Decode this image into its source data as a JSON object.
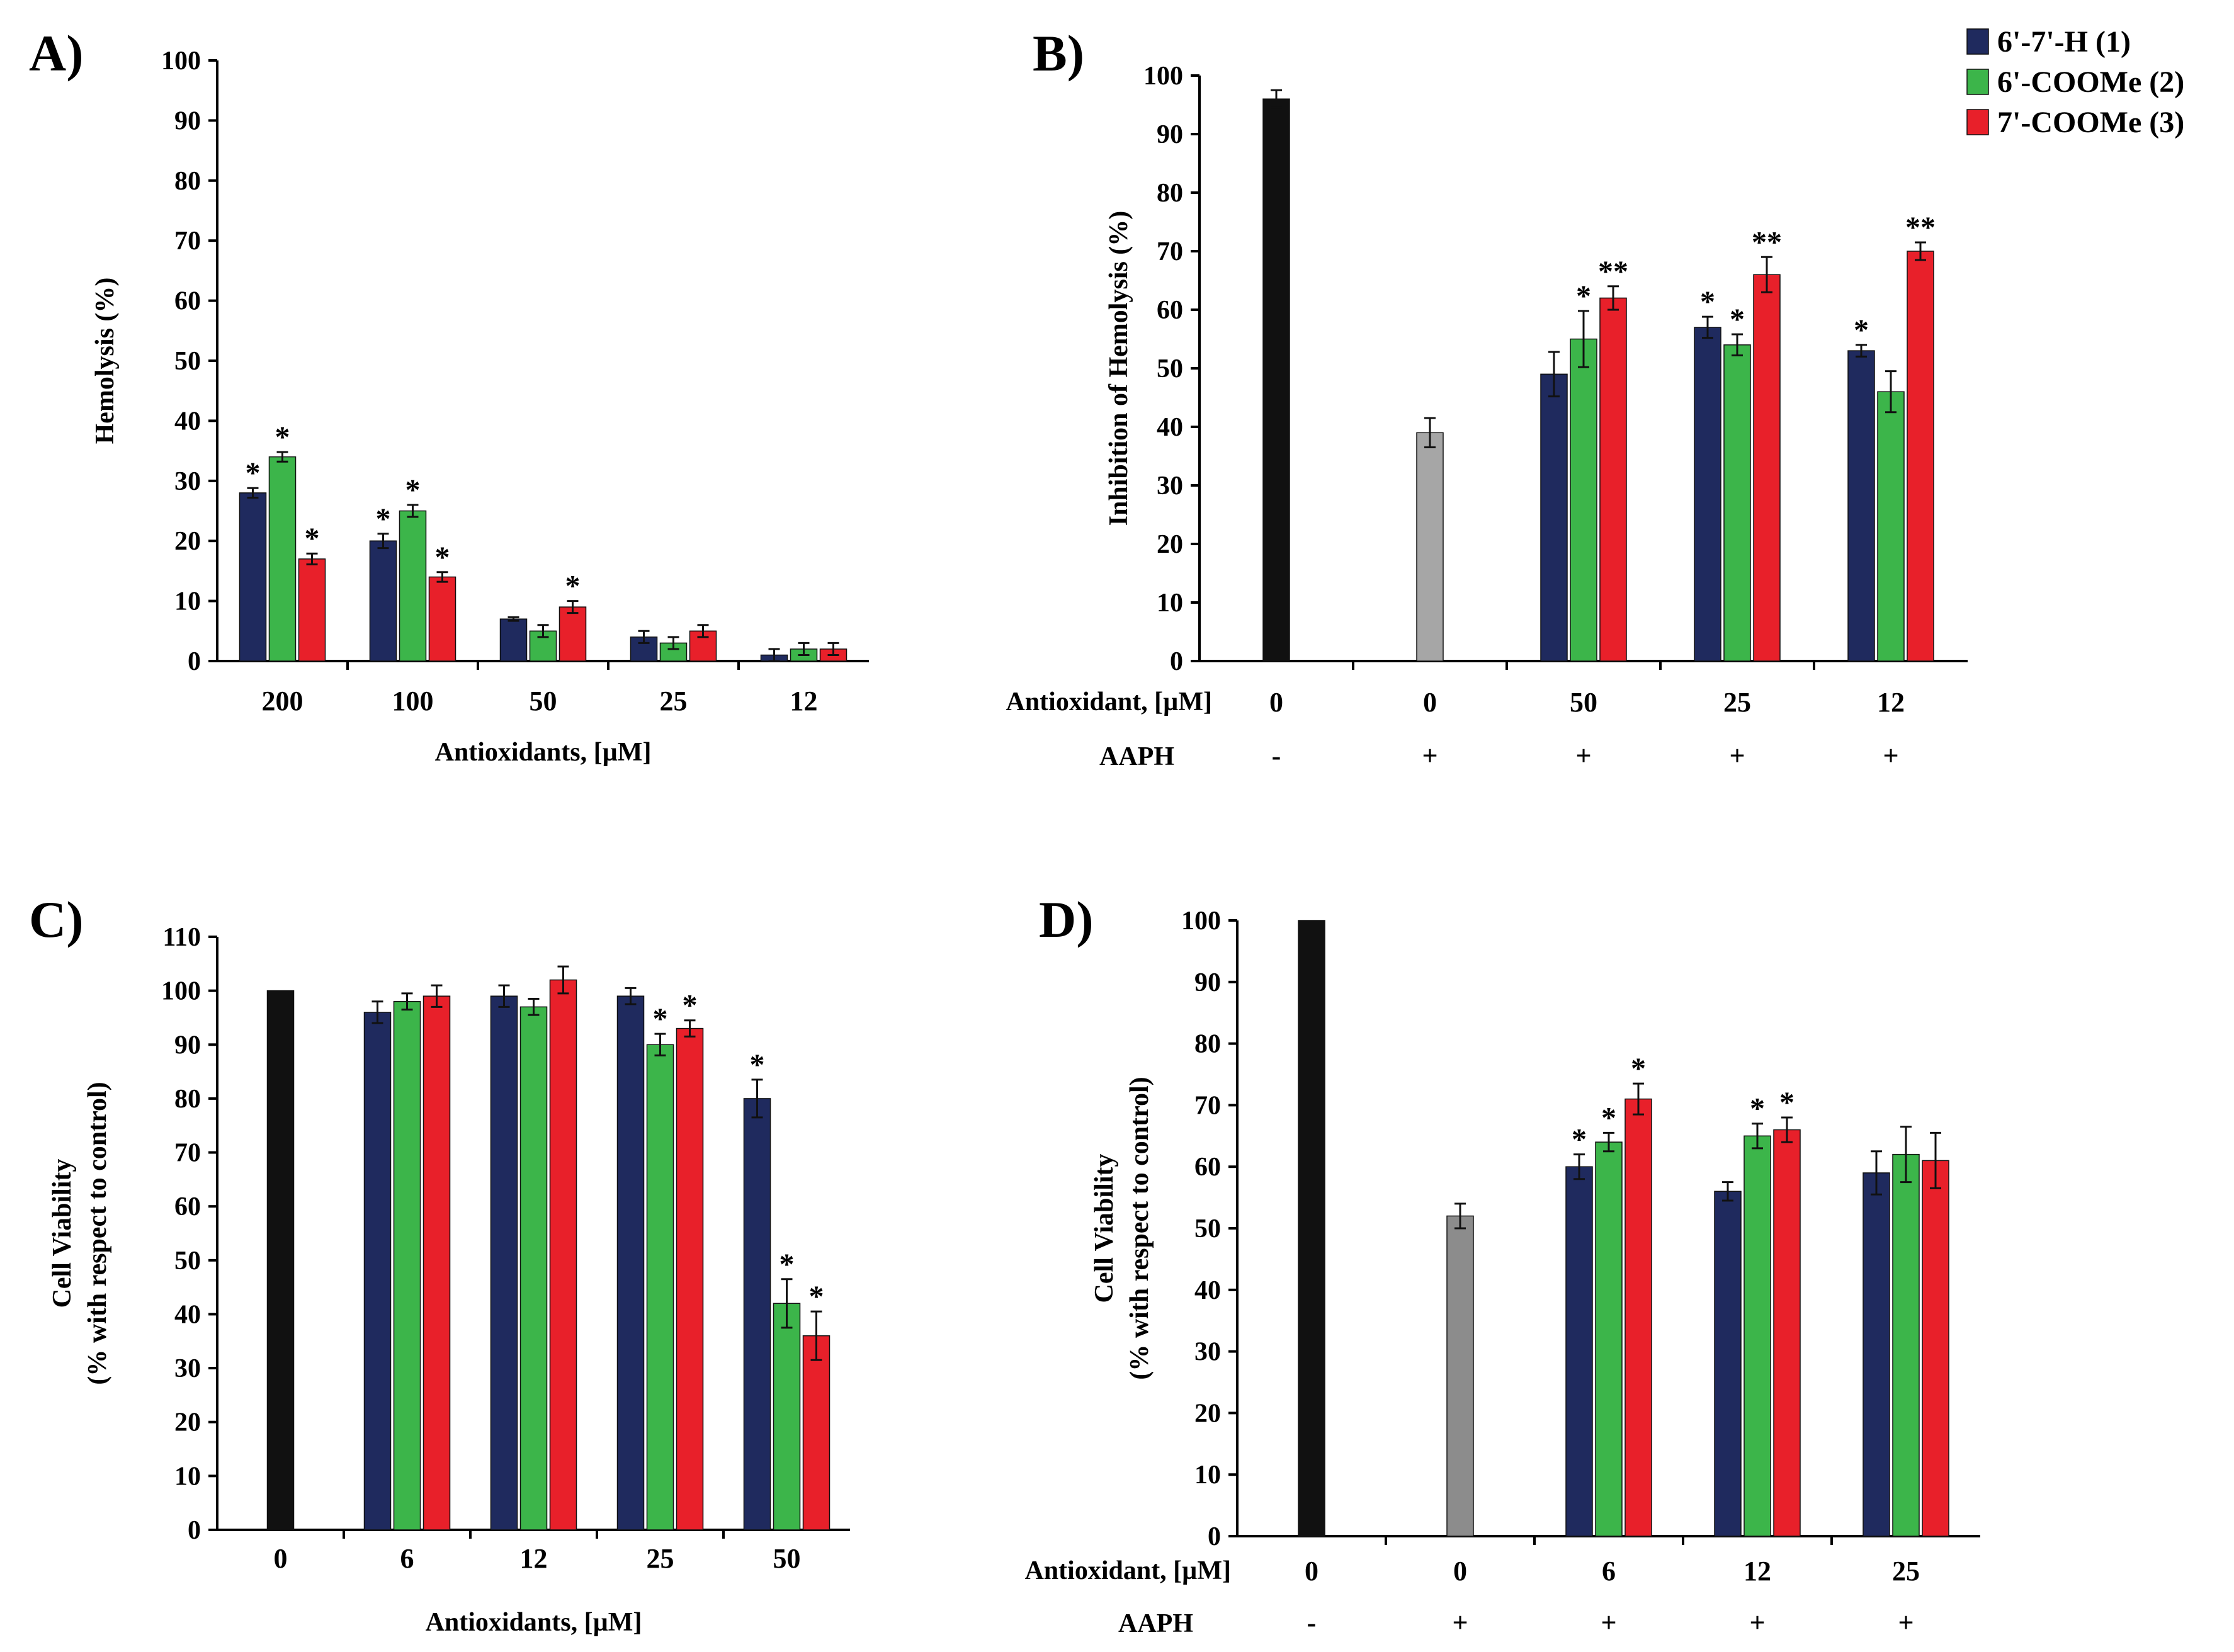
{
  "legend": [
    {
      "label": "6'-7'-H (1)",
      "color": "#1f2a5e"
    },
    {
      "label": "6'-COOMe (2)",
      "color": "#3cb54a"
    },
    {
      "label": "7'-COOMe (3)",
      "color": "#e8202a"
    }
  ],
  "chart_data": [
    {
      "panel": "A)",
      "type": "bar",
      "ylabel": "Hemolysis (%)",
      "xlabel": "Antioxidants, [µM]",
      "ylim": [
        0,
        100
      ],
      "yticks": [
        0,
        10,
        20,
        30,
        40,
        50,
        60,
        70,
        80,
        90,
        100
      ],
      "groups": [
        {
          "label": "200",
          "bars": [
            {
              "series": 0,
              "value": 28,
              "err": 0.8,
              "mark": "*"
            },
            {
              "series": 1,
              "value": 34,
              "err": 0.8,
              "mark": "*"
            },
            {
              "series": 2,
              "value": 17,
              "err": 0.9,
              "mark": "*"
            }
          ]
        },
        {
          "label": "100",
          "bars": [
            {
              "series": 0,
              "value": 20,
              "err": 1.2,
              "mark": "*"
            },
            {
              "series": 1,
              "value": 25,
              "err": 1.0,
              "mark": "*"
            },
            {
              "series": 2,
              "value": 14,
              "err": 0.8,
              "mark": "*"
            }
          ]
        },
        {
          "label": "50",
          "bars": [
            {
              "series": 0,
              "value": 7,
              "err": 0.3,
              "mark": ""
            },
            {
              "series": 1,
              "value": 5,
              "err": 1.0,
              "mark": ""
            },
            {
              "series": 2,
              "value": 9,
              "err": 1.0,
              "mark": "*"
            }
          ]
        },
        {
          "label": "25",
          "bars": [
            {
              "series": 0,
              "value": 4,
              "err": 1.0,
              "mark": ""
            },
            {
              "series": 1,
              "value": 3,
              "err": 1.0,
              "mark": ""
            },
            {
              "series": 2,
              "value": 5,
              "err": 1.0,
              "mark": ""
            }
          ]
        },
        {
          "label": "12",
          "bars": [
            {
              "series": 0,
              "value": 1,
              "err": 1.0,
              "mark": ""
            },
            {
              "series": 1,
              "value": 2,
              "err": 1.0,
              "mark": ""
            },
            {
              "series": 2,
              "value": 2,
              "err": 1.0,
              "mark": ""
            }
          ]
        }
      ]
    },
    {
      "panel": "B)",
      "type": "bar",
      "ylabel": "Inhibition of Hemolysis (%)",
      "xrow_label": "Antioxidant, [µM]",
      "aaph_label": "AAPH",
      "ylim": [
        0,
        100
      ],
      "yticks": [
        0,
        10,
        20,
        30,
        40,
        50,
        60,
        70,
        80,
        90,
        100
      ],
      "groups": [
        {
          "label": "0",
          "aaph": "-",
          "bars": [
            {
              "color": "#111111",
              "value": 96,
              "err": 1.5,
              "mark": ""
            }
          ]
        },
        {
          "label": "0",
          "aaph": "+",
          "bars": [
            {
              "color": "#a6a6a6",
              "value": 39,
              "err": 2.5,
              "mark": ""
            }
          ]
        },
        {
          "label": "50",
          "aaph": "+",
          "bars": [
            {
              "series": 0,
              "value": 49,
              "err": 3.8,
              "mark": ""
            },
            {
              "series": 1,
              "value": 55,
              "err": 4.8,
              "mark": "*"
            },
            {
              "series": 2,
              "value": 62,
              "err": 2.0,
              "mark": "**"
            }
          ]
        },
        {
          "label": "25",
          "aaph": "+",
          "bars": [
            {
              "series": 0,
              "value": 57,
              "err": 1.8,
              "mark": "*"
            },
            {
              "series": 1,
              "value": 54,
              "err": 1.8,
              "mark": "*"
            },
            {
              "series": 2,
              "value": 66,
              "err": 3.0,
              "mark": "**"
            }
          ]
        },
        {
          "label": "12",
          "aaph": "+",
          "bars": [
            {
              "series": 0,
              "value": 53,
              "err": 1.0,
              "mark": "*"
            },
            {
              "series": 1,
              "value": 46,
              "err": 3.5,
              "mark": ""
            },
            {
              "series": 2,
              "value": 70,
              "err": 1.5,
              "mark": "**"
            }
          ]
        }
      ]
    },
    {
      "panel": "C)",
      "type": "bar",
      "ylabel": "Cell Viability",
      "ylabel2": "(% with respect to control)",
      "xlabel": "Antioxidants, [µM]",
      "ylim": [
        0,
        110
      ],
      "yticks": [
        0,
        10,
        20,
        30,
        40,
        50,
        60,
        70,
        80,
        90,
        100,
        110
      ],
      "groups": [
        {
          "label": "0",
          "bars": [
            {
              "color": "#111111",
              "value": 100,
              "err": 0,
              "mark": ""
            }
          ]
        },
        {
          "label": "6",
          "bars": [
            {
              "series": 0,
              "value": 96,
              "err": 2.0,
              "mark": ""
            },
            {
              "series": 1,
              "value": 98,
              "err": 1.5,
              "mark": ""
            },
            {
              "series": 2,
              "value": 99,
              "err": 2.0,
              "mark": ""
            }
          ]
        },
        {
          "label": "12",
          "bars": [
            {
              "series": 0,
              "value": 99,
              "err": 2.0,
              "mark": ""
            },
            {
              "series": 1,
              "value": 97,
              "err": 1.5,
              "mark": ""
            },
            {
              "series": 2,
              "value": 102,
              "err": 2.5,
              "mark": ""
            }
          ]
        },
        {
          "label": "25",
          "bars": [
            {
              "series": 0,
              "value": 99,
              "err": 1.5,
              "mark": ""
            },
            {
              "series": 1,
              "value": 90,
              "err": 2.0,
              "mark": "*"
            },
            {
              "series": 2,
              "value": 93,
              "err": 1.5,
              "mark": "*"
            }
          ]
        },
        {
          "label": "50",
          "bars": [
            {
              "series": 0,
              "value": 80,
              "err": 3.5,
              "mark": "*"
            },
            {
              "series": 1,
              "value": 42,
              "err": 4.5,
              "mark": "*"
            },
            {
              "series": 2,
              "value": 36,
              "err": 4.5,
              "mark": "*"
            }
          ]
        }
      ]
    },
    {
      "panel": "D)",
      "type": "bar",
      "ylabel": "Cell Viability",
      "ylabel2": "(% with respect to control)",
      "xrow_label": "Antioxidant, [µM]",
      "aaph_label": "AAPH",
      "ylim": [
        0,
        100
      ],
      "yticks": [
        0,
        10,
        20,
        30,
        40,
        50,
        60,
        70,
        80,
        90,
        100
      ],
      "groups": [
        {
          "label": "0",
          "aaph": "-",
          "bars": [
            {
              "color": "#111111",
              "value": 100,
              "err": 0,
              "mark": ""
            }
          ]
        },
        {
          "label": "0",
          "aaph": "+",
          "bars": [
            {
              "color": "#8c8c8c",
              "value": 52,
              "err": 2.0,
              "mark": ""
            }
          ]
        },
        {
          "label": "6",
          "aaph": "+",
          "bars": [
            {
              "series": 0,
              "value": 60,
              "err": 2.0,
              "mark": "*"
            },
            {
              "series": 1,
              "value": 64,
              "err": 1.5,
              "mark": "*"
            },
            {
              "series": 2,
              "value": 71,
              "err": 2.5,
              "mark": "*"
            }
          ]
        },
        {
          "label": "12",
          "aaph": "+",
          "bars": [
            {
              "series": 0,
              "value": 56,
              "err": 1.5,
              "mark": ""
            },
            {
              "series": 1,
              "value": 65,
              "err": 2.0,
              "mark": "*"
            },
            {
              "series": 2,
              "value": 66,
              "err": 2.0,
              "mark": "*"
            }
          ]
        },
        {
          "label": "25",
          "aaph": "+",
          "bars": [
            {
              "series": 0,
              "value": 59,
              "err": 3.5,
              "mark": ""
            },
            {
              "series": 1,
              "value": 62,
              "err": 4.5,
              "mark": ""
            },
            {
              "series": 2,
              "value": 61,
              "err": 4.5,
              "mark": ""
            }
          ]
        }
      ]
    }
  ]
}
